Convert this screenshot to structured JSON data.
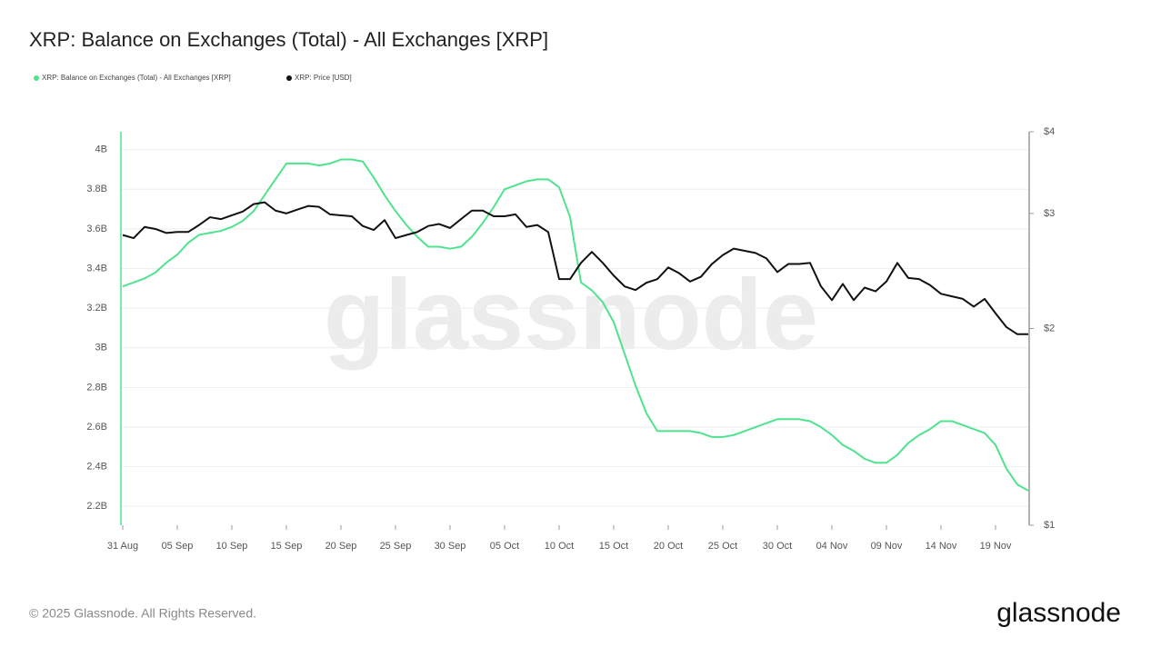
{
  "chart_data": {
    "type": "line",
    "title": "XRP: Balance on Exchanges (Total) - All Exchanges [XRP]",
    "brand": "glassnode",
    "footer": "© 2025 Glassnode. All Rights Reserved.",
    "categories": [
      "31 Aug",
      null,
      null,
      null,
      null,
      "05 Sep",
      null,
      null,
      null,
      null,
      "10 Sep",
      null,
      null,
      null,
      null,
      "15 Sep",
      null,
      null,
      null,
      null,
      "20 Sep",
      null,
      null,
      null,
      null,
      "25 Sep",
      null,
      null,
      null,
      null,
      "30 Sep",
      null,
      null,
      null,
      null,
      "05 Oct",
      null,
      null,
      null,
      null,
      "10 Oct",
      null,
      null,
      null,
      null,
      "15 Oct",
      null,
      null,
      null,
      null,
      "20 Oct",
      null,
      null,
      null,
      null,
      "25 Oct",
      null,
      null,
      null,
      null,
      "30 Oct",
      null,
      null,
      null,
      null,
      "04 Nov",
      null,
      null,
      null,
      null,
      "09 Nov",
      null,
      null,
      null,
      null,
      "14 Nov",
      null,
      null,
      null,
      null,
      "19 Nov",
      null,
      null,
      null
    ],
    "series": [
      {
        "name": "XRP: Balance on Exchanges (Total) - All Exchanges [XRP]",
        "color": "#4fe38e",
        "axis": "y",
        "values": [
          3.31,
          3.33,
          3.35,
          3.38,
          3.43,
          3.47,
          3.53,
          3.57,
          3.58,
          3.59,
          3.61,
          3.64,
          3.69,
          3.77,
          3.85,
          3.93,
          3.93,
          3.93,
          3.92,
          3.93,
          3.95,
          3.95,
          3.94,
          3.86,
          3.77,
          3.69,
          3.62,
          3.56,
          3.51,
          3.51,
          3.5,
          3.51,
          3.56,
          3.63,
          3.71,
          3.8,
          3.82,
          3.84,
          3.85,
          3.85,
          3.81,
          3.66,
          3.33,
          3.29,
          3.23,
          3.13,
          2.97,
          2.81,
          2.67,
          2.58,
          2.58,
          2.58,
          2.58,
          2.57,
          2.55,
          2.55,
          2.56,
          2.58,
          2.6,
          2.62,
          2.64,
          2.64,
          2.64,
          2.63,
          2.6,
          2.56,
          2.51,
          2.48,
          2.44,
          2.42,
          2.42,
          2.46,
          2.52,
          2.56,
          2.59,
          2.63,
          2.63,
          2.61,
          2.59,
          2.57,
          2.51,
          2.39,
          2.31,
          2.28
        ]
      },
      {
        "name": "XRP: Price [USD]",
        "color": "#111111",
        "axis": "y2",
        "values": [
          2.78,
          2.75,
          2.86,
          2.84,
          2.8,
          2.81,
          2.81,
          2.88,
          2.96,
          2.94,
          2.98,
          3.02,
          3.1,
          3.12,
          3.03,
          3.0,
          3.04,
          3.08,
          3.07,
          2.99,
          2.98,
          2.97,
          2.87,
          2.83,
          2.93,
          2.75,
          2.78,
          2.81,
          2.87,
          2.89,
          2.85,
          2.94,
          3.03,
          3.03,
          2.97,
          2.97,
          2.99,
          2.86,
          2.88,
          2.81,
          2.38,
          2.38,
          2.52,
          2.62,
          2.52,
          2.41,
          2.32,
          2.29,
          2.35,
          2.38,
          2.48,
          2.43,
          2.36,
          2.4,
          2.51,
          2.59,
          2.65,
          2.63,
          2.61,
          2.56,
          2.44,
          2.51,
          2.51,
          2.52,
          2.32,
          2.21,
          2.34,
          2.21,
          2.31,
          2.28,
          2.36,
          2.52,
          2.39,
          2.38,
          2.33,
          2.26,
          2.24,
          2.22,
          2.16,
          2.22,
          2.11,
          2.01,
          1.96,
          1.96
        ]
      }
    ],
    "ylim": [
      2.105,
      4.09
    ],
    "yticks": [
      {
        "value": 2.2,
        "label": "2.2B"
      },
      {
        "value": 2.4,
        "label": "2.4B"
      },
      {
        "value": 2.6,
        "label": "2.6B"
      },
      {
        "value": 2.8,
        "label": "2.8B"
      },
      {
        "value": 3,
        "label": "3B"
      },
      {
        "value": 3.2,
        "label": "3.2B"
      },
      {
        "value": 3.4,
        "label": "3.4B"
      },
      {
        "value": 3.6,
        "label": "3.6B"
      },
      {
        "value": 3.8,
        "label": "3.8B"
      },
      {
        "value": 4,
        "label": "4B"
      }
    ],
    "y2lim": [
      1,
      4
    ],
    "y2ticks": [
      {
        "value": 1,
        "label": "$1"
      },
      {
        "value": 2,
        "label": "$2"
      },
      {
        "value": 3,
        "label": "$3"
      },
      {
        "value": 4,
        "label": "$4"
      }
    ],
    "y2_log": true,
    "grid": true
  }
}
